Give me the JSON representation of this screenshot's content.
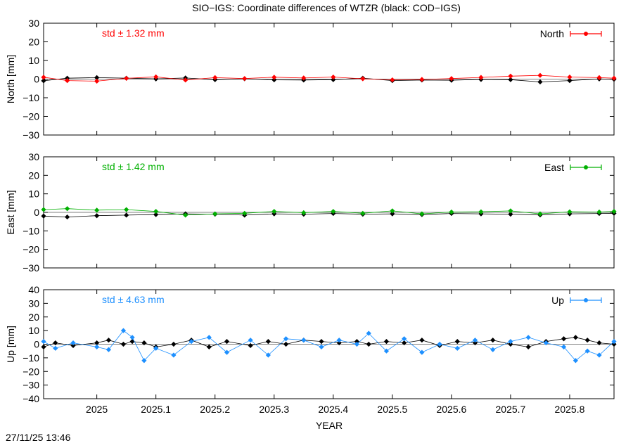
{
  "chart_data": {
    "type": "scatter",
    "title": "SIO−IGS: Coordinate differences of WTZR (black: COD−IGS)",
    "xlabel": "YEAR",
    "xlim": [
      2024.91,
      2025.875
    ],
    "x_ticks": [
      2025,
      2025.1,
      2025.2,
      2025.3,
      2025.4,
      2025.5,
      2025.6,
      2025.7,
      2025.8
    ],
    "x_tick_labels": [
      "2025",
      "2025.1",
      "2025.2",
      "2025.3",
      "2025.4",
      "2025.5",
      "2025.6",
      "2025.7",
      "2025.8"
    ],
    "timestamp": "27/11/25 13:46",
    "panels": [
      {
        "ylabel": "North [mm]",
        "ylim": [
          -30,
          30
        ],
        "y_ticks": [
          -30,
          -20,
          -10,
          0,
          10,
          20,
          30
        ],
        "y_tick_labels": [
          "−30",
          "−20",
          "−10",
          "0",
          "10",
          "20",
          "30"
        ],
        "std_text": "std ± 1.32 mm",
        "legend": "North",
        "legend_position": "top-right",
        "color": "#ff0000",
        "series": [
          {
            "x": [
              2024.91,
              2024.95,
              2025.0,
              2025.05,
              2025.1,
              2025.15,
              2025.2,
              2025.25,
              2025.3,
              2025.35,
              2025.4,
              2025.45,
              2025.5,
              2025.55,
              2025.6,
              2025.65,
              2025.7,
              2025.75,
              2025.8,
              2025.85,
              2025.875
            ],
            "y": [
              1.0,
              -0.8,
              -1.1,
              0.4,
              1.2,
              -0.5,
              0.8,
              0.3,
              1.0,
              0.6,
              1.1,
              0.2,
              -0.4,
              -0.2,
              0.3,
              0.9,
              1.6,
              2.0,
              1.1,
              0.8,
              0.5
            ]
          },
          {
            "name": "COD−IGS",
            "color": "#000000",
            "x": [
              2024.91,
              2024.95,
              2025.0,
              2025.05,
              2025.1,
              2025.15,
              2025.2,
              2025.25,
              2025.3,
              2025.35,
              2025.4,
              2025.45,
              2025.5,
              2025.55,
              2025.6,
              2025.65,
              2025.7,
              2025.75,
              2025.8,
              2025.85,
              2025.875
            ],
            "y": [
              -0.9,
              0.5,
              0.8,
              0.5,
              0.1,
              0.6,
              -0.3,
              0.2,
              -0.4,
              -0.5,
              -0.3,
              0.5,
              -0.8,
              -0.5,
              -0.6,
              -0.2,
              -0.3,
              -1.5,
              -0.8,
              0.1,
              -0.1
            ]
          }
        ]
      },
      {
        "ylabel": "East [mm]",
        "ylim": [
          -30,
          30
        ],
        "y_ticks": [
          -30,
          -20,
          -10,
          0,
          10,
          20,
          30
        ],
        "y_tick_labels": [
          "−30",
          "−20",
          "−10",
          "0",
          "10",
          "20",
          "30"
        ],
        "std_text": "std ± 1.42 mm",
        "legend": "East",
        "legend_position": "top-right",
        "color": "#00b000",
        "series": [
          {
            "x": [
              2024.91,
              2024.95,
              2025.0,
              2025.05,
              2025.1,
              2025.15,
              2025.2,
              2025.25,
              2025.3,
              2025.35,
              2025.4,
              2025.45,
              2025.5,
              2025.55,
              2025.6,
              2025.65,
              2025.7,
              2025.75,
              2025.8,
              2025.85,
              2025.875
            ],
            "y": [
              1.5,
              2.0,
              1.2,
              1.5,
              0.5,
              -1.5,
              -0.8,
              -0.5,
              0.5,
              -0.2,
              0.5,
              -0.5,
              0.8,
              -0.8,
              0.2,
              0.3,
              0.8,
              -0.8,
              0.3,
              0.2,
              0.5
            ]
          },
          {
            "name": "COD−IGS",
            "color": "#000000",
            "x": [
              2024.91,
              2024.95,
              2025.0,
              2025.05,
              2025.1,
              2025.15,
              2025.2,
              2025.25,
              2025.3,
              2025.35,
              2025.4,
              2025.45,
              2025.5,
              2025.55,
              2025.6,
              2025.65,
              2025.7,
              2025.75,
              2025.8,
              2025.85,
              2025.875
            ],
            "y": [
              -2.0,
              -2.5,
              -1.8,
              -1.5,
              -1.2,
              -0.8,
              -1.0,
              -1.5,
              -0.8,
              -1.0,
              -0.6,
              -1.0,
              -0.8,
              -1.2,
              -0.6,
              -0.8,
              -1.0,
              -1.4,
              -0.8,
              -0.6,
              -0.5
            ]
          }
        ]
      },
      {
        "ylabel": "Up [mm]",
        "ylim": [
          -40,
          40
        ],
        "y_ticks": [
          -40,
          -30,
          -20,
          -10,
          0,
          10,
          20,
          30,
          40
        ],
        "y_tick_labels": [
          "−40",
          "−30",
          "−20",
          "−10",
          "0",
          "10",
          "20",
          "30",
          "40"
        ],
        "std_text": "std ± 4.63 mm",
        "legend": "Up",
        "legend_position": "top-right",
        "color": "#1e90ff",
        "series": [
          {
            "x": [
              2024.91,
              2024.93,
              2024.96,
              2025.0,
              2025.02,
              2025.045,
              2025.06,
              2025.08,
              2025.1,
              2025.13,
              2025.16,
              2025.19,
              2025.22,
              2025.26,
              2025.29,
              2025.32,
              2025.35,
              2025.38,
              2025.41,
              2025.44,
              2025.46,
              2025.49,
              2025.52,
              2025.55,
              2025.58,
              2025.61,
              2025.64,
              2025.67,
              2025.7,
              2025.73,
              2025.76,
              2025.79,
              2025.81,
              2025.83,
              2025.85,
              2025.875
            ],
            "y": [
              2,
              -3,
              1,
              -2,
              -4,
              10,
              5,
              -12,
              -3,
              -8,
              2,
              5,
              -6,
              3,
              -8,
              4,
              3,
              -2,
              3,
              0,
              8,
              -5,
              4,
              -6,
              0,
              -3,
              3,
              -4,
              2,
              5,
              1,
              -2,
              -12,
              -5,
              -8,
              2
            ]
          },
          {
            "name": "COD−IGS",
            "color": "#000000",
            "x": [
              2024.91,
              2024.93,
              2024.96,
              2025.0,
              2025.02,
              2025.045,
              2025.06,
              2025.08,
              2025.1,
              2025.13,
              2025.16,
              2025.19,
              2025.22,
              2025.26,
              2025.29,
              2025.32,
              2025.35,
              2025.38,
              2025.41,
              2025.44,
              2025.46,
              2025.49,
              2025.52,
              2025.55,
              2025.58,
              2025.61,
              2025.64,
              2025.67,
              2025.7,
              2025.73,
              2025.76,
              2025.79,
              2025.81,
              2025.83,
              2025.85,
              2025.875
            ],
            "y": [
              -2,
              1,
              -1,
              1,
              3,
              0,
              2,
              1,
              -2,
              0,
              3,
              -2,
              2,
              -1,
              2,
              0,
              3,
              2,
              1,
              2,
              0,
              2,
              1,
              3,
              -1,
              2,
              1,
              3,
              0,
              -2,
              2,
              4,
              5,
              3,
              1,
              0
            ]
          }
        ]
      }
    ]
  }
}
